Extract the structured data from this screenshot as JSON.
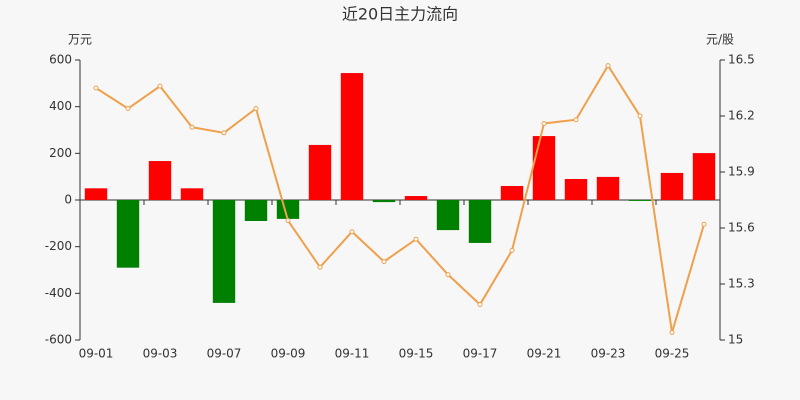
{
  "chart_data": {
    "type": "bar-line",
    "title": "近20日主力流向",
    "y_label": "万元",
    "y2_label": "元/股",
    "categories": [
      "09-01",
      null,
      "09-03",
      null,
      "09-07",
      null,
      "09-09",
      null,
      "09-11",
      null,
      "09-15",
      null,
      "09-17",
      null,
      "09-21",
      null,
      "09-23",
      null,
      "09-25",
      null
    ],
    "series": [
      {
        "type": "bar",
        "values": [
          50,
          -290,
          167,
          50,
          -441,
          -90,
          -81,
          236,
          544,
          -9,
          17,
          -129,
          -184,
          60,
          274,
          90,
          99,
          -4,
          116,
          201
        ],
        "positive_color": "#ff0000",
        "negative_color": "#008000"
      },
      {
        "type": "line",
        "axis": "y2",
        "color": "#f0a04b",
        "values": [
          16.35,
          16.24,
          16.36,
          16.14,
          16.11,
          16.24,
          15.64,
          15.39,
          15.58,
          15.42,
          15.54,
          15.35,
          15.19,
          15.48,
          16.16,
          16.18,
          16.47,
          16.2,
          15.04,
          15.62
        ]
      }
    ],
    "ylim": [
      -600,
      600
    ],
    "yticks": [
      -600,
      -400,
      -200,
      0,
      200,
      400,
      600
    ],
    "y2lim": [
      15,
      16.5
    ],
    "y2ticks": [
      15,
      15.3,
      15.6,
      15.9,
      16.2,
      16.5
    ]
  }
}
